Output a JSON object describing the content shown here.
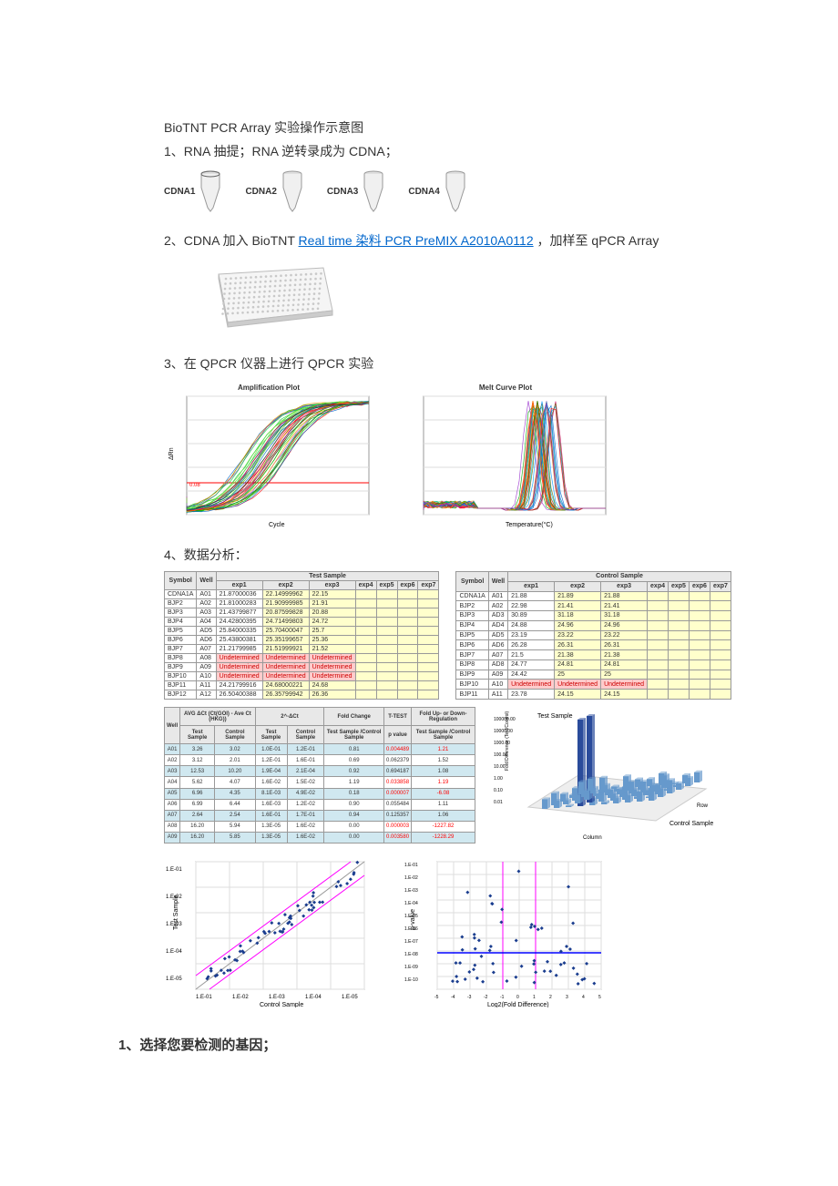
{
  "title": "BioTNT PCR Array 实验操作示意图",
  "steps": {
    "s1": "1、RNA 抽提；RNA 逆转录成为 CDNA；",
    "s2_prefix": "2、CDNA 加入 BioTNT ",
    "s2_link": "Real time 染料 PCR PreMIX  A2010A0112",
    "s2_suffix": " ，加样至 qPCR Array",
    "s3": "3、在 QPCR 仪器上进行 QPCR 实验",
    "s4": "4、数据分析：",
    "bold1": "1、选择您要检测的基因；"
  },
  "tubes": [
    "CDNA1",
    "CDNA2",
    "CDNA3",
    "CDNA4"
  ],
  "amp_plot": {
    "title": "Amplification Plot",
    "colors": [
      "#00aa00",
      "#00cc33",
      "#33cc00",
      "#66dd33",
      "#ff0000",
      "#cc0033",
      "#0066cc",
      "#ff9900",
      "#9933cc",
      "#006633"
    ],
    "threshold_color": "#ff0000",
    "bg": "#ffffff",
    "grid": "#dddddd"
  },
  "melt_plot": {
    "title": "Melt Curve Plot",
    "colors": [
      "#ff0000",
      "#00aa00",
      "#0066cc",
      "#ff9900",
      "#9933cc",
      "#00cccc",
      "#cc0066",
      "#666600",
      "#0099ff",
      "#ff6600"
    ],
    "bg": "#ffffff",
    "grid": "#dddddd"
  },
  "test_table": {
    "header_main": "Test Sample",
    "sym": "Symbol",
    "well": "Well",
    "cols": [
      "exp1",
      "exp2",
      "exp3",
      "exp4",
      "exp5",
      "exp6",
      "exp7"
    ],
    "rows": [
      {
        "s": "CDNA1A",
        "w": "A01",
        "v": [
          "21.87000036",
          "22.14999962",
          "22.15",
          "",
          "",
          "",
          ""
        ]
      },
      {
        "s": "BJP2",
        "w": "A02",
        "v": [
          "21.81000283",
          "21.90999985",
          "21.91",
          "",
          "",
          "",
          ""
        ]
      },
      {
        "s": "BJP3",
        "w": "A03",
        "v": [
          "21.43799877",
          "20.87599828",
          "20.88",
          "",
          "",
          "",
          ""
        ]
      },
      {
        "s": "BJP4",
        "w": "A04",
        "v": [
          "24.42800395",
          "24.71499803",
          "24.72",
          "",
          "",
          "",
          ""
        ]
      },
      {
        "s": "BJP5",
        "w": "AD5",
        "v": [
          "25.84000335",
          "25.70400047",
          "25.7",
          "",
          "",
          "",
          ""
        ]
      },
      {
        "s": "BJP6",
        "w": "AD6",
        "v": [
          "25.43800381",
          "25.35199657",
          "25.36",
          "",
          "",
          "",
          ""
        ]
      },
      {
        "s": "BJP7",
        "w": "A07",
        "v": [
          "21.21799985",
          "21.51999921",
          "21.52",
          "",
          "",
          "",
          ""
        ]
      },
      {
        "s": "BJP8",
        "w": "A08",
        "v": [
          "Undetermined",
          "Undetermined",
          "Undetermined",
          "",
          "",
          "",
          ""
        ],
        "undet": true
      },
      {
        "s": "BJP9",
        "w": "A09",
        "v": [
          "Undetermined",
          "Undetermined",
          "Undetermined",
          "",
          "",
          "",
          ""
        ],
        "undet": true
      },
      {
        "s": "BJP10",
        "w": "A10",
        "v": [
          "Undetermined",
          "Undetermined",
          "Undetermined",
          "",
          "",
          "",
          ""
        ],
        "undet": true
      },
      {
        "s": "BJP11",
        "w": "A11",
        "v": [
          "24.21799916",
          "24.68000221",
          "24.68",
          "",
          "",
          "",
          ""
        ]
      },
      {
        "s": "BJP12",
        "w": "A12",
        "v": [
          "26.50400388",
          "26.35799942",
          "26.36",
          "",
          "",
          "",
          ""
        ]
      }
    ]
  },
  "ctrl_table": {
    "header_main": "Control Sample",
    "sym": "Symbol",
    "well": "Well",
    "cols": [
      "exp1",
      "exp2",
      "exp3",
      "exp4",
      "exp5",
      "exp6",
      "exp7"
    ],
    "rows": [
      {
        "s": "CDNA1A",
        "w": "A01",
        "v": [
          "21.88",
          "21.89",
          "21.88",
          "",
          "",
          "",
          ""
        ]
      },
      {
        "s": "BJP2",
        "w": "A02",
        "v": [
          "22.98",
          "21.41",
          "21.41",
          "",
          "",
          "",
          ""
        ]
      },
      {
        "s": "BJP3",
        "w": "AD3",
        "v": [
          "30.89",
          "31.18",
          "31.18",
          "",
          "",
          "",
          ""
        ]
      },
      {
        "s": "BJP4",
        "w": "AD4",
        "v": [
          "24.88",
          "24.96",
          "24.96",
          "",
          "",
          "",
          ""
        ]
      },
      {
        "s": "BJP5",
        "w": "AD5",
        "v": [
          "23.19",
          "23.22",
          "23.22",
          "",
          "",
          "",
          ""
        ]
      },
      {
        "s": "BJP6",
        "w": "AD6",
        "v": [
          "26.28",
          "26.31",
          "26.31",
          "",
          "",
          "",
          ""
        ]
      },
      {
        "s": "BJP7",
        "w": "A07",
        "v": [
          "21.5",
          "21.38",
          "21.38",
          "",
          "",
          "",
          ""
        ]
      },
      {
        "s": "BJP8",
        "w": "AD8",
        "v": [
          "24.77",
          "24.81",
          "24.81",
          "",
          "",
          "",
          ""
        ]
      },
      {
        "s": "BJP9",
        "w": "A09",
        "v": [
          "24.42",
          "25",
          "25",
          "",
          "",
          "",
          ""
        ]
      },
      {
        "s": "BJP10",
        "w": "A10",
        "v": [
          "Undetermined",
          "Undetermined",
          "Undetermined",
          "",
          "",
          "",
          ""
        ],
        "undet": true
      },
      {
        "s": "BJP11",
        "w": "A11",
        "v": [
          "23.78",
          "24.15",
          "24.15",
          "",
          "",
          "",
          ""
        ]
      }
    ]
  },
  "stat_table": {
    "h": {
      "well": "Well",
      "avg": "AVG ΔCt (Ct(GOI) - Ave Ct (HKG))",
      "dd": "2^-ΔCt",
      "fc": "Fold Change",
      "tt": "T-TEST",
      "fud": "Fold Up- or Down- Regulation",
      "ts": "Test Sample",
      "cs": "Control Sample",
      "tscs": "Test Sample /Control Sample",
      "pv": "p value"
    },
    "rows": [
      {
        "w": "A01",
        "ts": "3.26",
        "cs": "3.02",
        "dts": "1.0E-01",
        "dcs": "1.2E-01",
        "fc": "0.81",
        "p": "0.004489",
        "fud": "1.21",
        "pr": true
      },
      {
        "w": "A02",
        "ts": "3.12",
        "cs": "2.01",
        "dts": "1.2E-01",
        "dcs": "1.6E-01",
        "fc": "0.69",
        "p": "0.062379",
        "fud": "1.52"
      },
      {
        "w": "A03",
        "ts": "12.53",
        "cs": "10.20",
        "dts": "1.9E-04",
        "dcs": "2.1E-04",
        "fc": "0.92",
        "p": "0.694187",
        "fud": "1.08"
      },
      {
        "w": "A04",
        "ts": "5.62",
        "cs": "4.07",
        "dts": "1.6E-02",
        "dcs": "1.5E-02",
        "fc": "1.19",
        "p": "0.033858",
        "fud": "1.19",
        "pr": true
      },
      {
        "w": "A05",
        "ts": "6.96",
        "cs": "4.35",
        "dts": "8.1E-03",
        "dcs": "4.9E-02",
        "fc": "0.18",
        "p": "0.000007",
        "fud": "-6.08",
        "pr": true
      },
      {
        "w": "A06",
        "ts": "6.99",
        "cs": "6.44",
        "dts": "1.6E-03",
        "dcs": "1.2E-02",
        "fc": "0.90",
        "p": "0.055484",
        "fud": "1.11"
      },
      {
        "w": "A07",
        "ts": "2.64",
        "cs": "2.54",
        "dts": "1.6E-01",
        "dcs": "1.7E-01",
        "fc": "0.94",
        "p": "0.125357",
        "fud": "1.06"
      },
      {
        "w": "A08",
        "ts": "16.20",
        "cs": "5.94",
        "dts": "1.3E-05",
        "dcs": "1.6E-02",
        "fc": "0.00",
        "p": "0.000003",
        "fud": "-1227.82",
        "pr": true
      },
      {
        "w": "A09",
        "ts": "16.20",
        "cs": "5.85",
        "dts": "1.3E-05",
        "dcs": "1.6E-02",
        "fc": "0.00",
        "p": "0.003580",
        "fud": "-1228.29",
        "pr": true
      }
    ]
  },
  "scatter1": {
    "xlabel": "Control Sample",
    "ylabel": "Test Sample",
    "ticks": [
      "1.E-01",
      "1.E-02",
      "1.E-03",
      "1.E-04",
      "1.E-05"
    ],
    "point_color": "#1a3d8f",
    "line_color": "#ff00ff",
    "grid": "#dddddd"
  },
  "scatter2": {
    "xlabel": "Log2(Fold Difference)",
    "ylabel": "p-value",
    "yticks": [
      "1.E-01",
      "1.E-02",
      "1.E-03",
      "1.E-04",
      "1.E-05",
      "1.E-06",
      "1.E-07",
      "1.E-08",
      "1.E-09",
      "1.E-10"
    ],
    "xticks": [
      "-5",
      "-4",
      "-3",
      "-2",
      "-1",
      "0",
      "1",
      "2",
      "3",
      "4",
      "5"
    ],
    "point_color": "#1a3d8f",
    "vline": "#ff00ff",
    "hline": "#0000ff",
    "grid": "#dddddd"
  },
  "bar3d": {
    "title": "Test Sample",
    "ctrl_label": "Control Sample",
    "axis_label_col": "Column",
    "axis_label_row": "Row",
    "ylabel": "Fold Difference (Test/Control)",
    "yticks": [
      "100000.00",
      "10000.00",
      "1000.00",
      "100.00",
      "10.00",
      "1.00",
      "0.10",
      "0.01"
    ],
    "bar_color": "#2a4b9b",
    "alt_color": "#6699cc"
  }
}
